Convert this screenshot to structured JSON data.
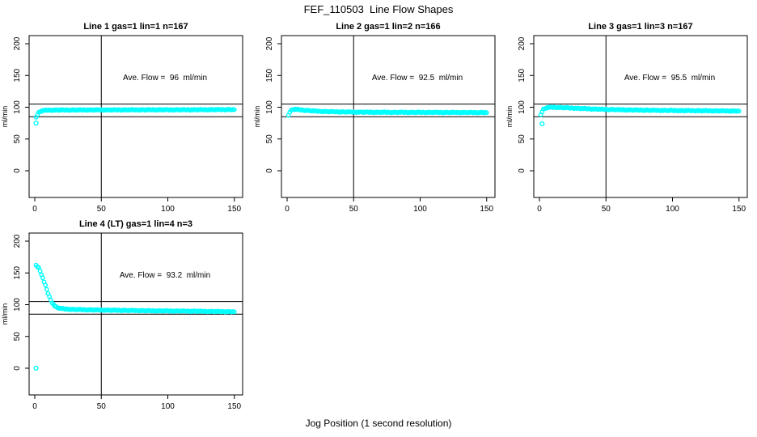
{
  "figure": {
    "title": "FEF_110503  Line Flow Shapes",
    "xlabel": "Jog Position (1 second resolution)",
    "background_color": "#ffffff",
    "point_color": "#00ffff",
    "line_color": "#000000"
  },
  "chart_data": [
    {
      "type": "scatter",
      "title": "Line 1 gas=1 lin=1 n=167",
      "annotation": "Ave. Flow =  96  ml/min",
      "line": 1,
      "gas": 1,
      "lin": 1,
      "n": 167,
      "ave_flow_ml_min": 96,
      "ylabel": "ml/min",
      "xlim": [
        0,
        150
      ],
      "ylim": [
        0,
        200
      ],
      "xticks": [
        0,
        50,
        100,
        150
      ],
      "yticks": [
        0,
        50,
        100,
        150,
        200
      ],
      "hlines": [
        105,
        85
      ],
      "vline": 50,
      "grid": false,
      "points": [
        [
          1,
          84
        ],
        [
          2,
          88.5
        ],
        [
          3,
          91.5
        ],
        [
          4,
          93
        ],
        [
          5,
          94.2
        ],
        [
          6,
          94.8
        ],
        [
          8,
          95.2
        ],
        [
          10,
          95.4
        ],
        [
          15,
          95.6
        ],
        [
          20,
          95.6
        ],
        [
          30,
          95.7
        ],
        [
          40,
          95.8
        ],
        [
          50,
          95.8
        ],
        [
          60,
          95.8
        ],
        [
          70,
          95.9
        ],
        [
          80,
          95.9
        ],
        [
          90,
          96
        ],
        [
          100,
          96
        ],
        [
          110,
          96
        ],
        [
          120,
          96.1
        ],
        [
          130,
          96.2
        ],
        [
          140,
          96.3
        ],
        [
          150,
          96.4
        ]
      ],
      "outliers": [
        [
          1,
          75
        ]
      ]
    },
    {
      "type": "scatter",
      "title": "Line 2 gas=1 lin=2 n=166",
      "annotation": "Ave. Flow =  92.5  ml/min",
      "line": 2,
      "gas": 1,
      "lin": 2,
      "n": 166,
      "ave_flow_ml_min": 92.5,
      "ylabel": "ml/min",
      "xlim": [
        0,
        150
      ],
      "ylim": [
        0,
        200
      ],
      "xticks": [
        0,
        50,
        100,
        150
      ],
      "yticks": [
        0,
        50,
        100,
        150,
        200
      ],
      "hlines": [
        105,
        85
      ],
      "vline": 50,
      "grid": false,
      "points": [
        [
          1,
          87
        ],
        [
          2,
          92.5
        ],
        [
          3,
          95
        ],
        [
          4,
          96.3
        ],
        [
          5,
          96.8
        ],
        [
          6,
          96.8
        ],
        [
          8,
          96.4
        ],
        [
          10,
          96
        ],
        [
          12,
          95.5
        ],
        [
          15,
          95
        ],
        [
          20,
          94.2
        ],
        [
          25,
          93.6
        ],
        [
          30,
          93.2
        ],
        [
          40,
          92.7
        ],
        [
          50,
          92.4
        ],
        [
          60,
          92.2
        ],
        [
          70,
          92.1
        ],
        [
          80,
          92
        ],
        [
          90,
          92
        ],
        [
          100,
          91.9
        ],
        [
          110,
          91.9
        ],
        [
          120,
          91.8
        ],
        [
          130,
          91.8
        ],
        [
          140,
          91.7
        ],
        [
          150,
          91.7
        ]
      ],
      "outliers": []
    },
    {
      "type": "scatter",
      "title": "Line 3 gas=1 lin=3 n=167",
      "annotation": "Ave. Flow =  95.5  ml/min",
      "line": 3,
      "gas": 1,
      "lin": 3,
      "n": 167,
      "ave_flow_ml_min": 95.5,
      "ylabel": "ml/min",
      "xlim": [
        0,
        150
      ],
      "ylim": [
        0,
        200
      ],
      "xticks": [
        0,
        50,
        100,
        150
      ],
      "yticks": [
        0,
        50,
        100,
        150,
        200
      ],
      "hlines": [
        105,
        85
      ],
      "vline": 50,
      "grid": false,
      "points": [
        [
          1,
          88
        ],
        [
          2,
          93
        ],
        [
          3,
          96.5
        ],
        [
          4,
          98
        ],
        [
          5,
          99
        ],
        [
          6,
          99.5
        ],
        [
          8,
          99.8
        ],
        [
          10,
          100
        ],
        [
          12,
          99.9
        ],
        [
          15,
          99.6
        ],
        [
          20,
          99.2
        ],
        [
          25,
          98.7
        ],
        [
          30,
          98.2
        ],
        [
          40,
          97.3
        ],
        [
          50,
          96.6
        ],
        [
          60,
          96.1
        ],
        [
          70,
          95.7
        ],
        [
          80,
          95.4
        ],
        [
          90,
          95.1
        ],
        [
          100,
          94.9
        ],
        [
          110,
          94.7
        ],
        [
          120,
          94.6
        ],
        [
          130,
          94.4
        ],
        [
          140,
          94.2
        ],
        [
          150,
          94.1
        ]
      ],
      "outliers": [
        [
          2,
          74
        ]
      ]
    },
    {
      "type": "scatter",
      "title": "Line 4 (LT) gas=1 lin=4 n=3",
      "annotation": "Ave. Flow =  93.2  ml/min",
      "line": 4,
      "gas": 1,
      "lin": 4,
      "n": 3,
      "ave_flow_ml_min": 93.2,
      "ylabel": "ml/min",
      "xlim": [
        0,
        150
      ],
      "ylim": [
        0,
        200
      ],
      "xticks": [
        0,
        50,
        100,
        150
      ],
      "yticks": [
        0,
        50,
        100,
        150,
        200
      ],
      "hlines": [
        105,
        85
      ],
      "vline": 50,
      "grid": false,
      "points": [
        [
          1,
          162
        ],
        [
          2,
          160
        ],
        [
          3,
          157.5
        ],
        [
          4,
          153
        ],
        [
          5,
          148
        ],
        [
          6,
          142
        ],
        [
          7,
          136
        ],
        [
          8,
          130
        ],
        [
          9,
          124
        ],
        [
          10,
          118
        ],
        [
          11,
          112.5
        ],
        [
          12,
          107.5
        ],
        [
          13,
          103.5
        ],
        [
          14,
          100.5
        ],
        [
          15,
          98
        ],
        [
          16,
          96.5
        ],
        [
          17,
          95.5
        ],
        [
          18,
          94.8
        ],
        [
          20,
          94
        ],
        [
          22,
          93.5
        ],
        [
          25,
          93
        ],
        [
          30,
          92.5
        ],
        [
          35,
          92.2
        ],
        [
          40,
          92
        ],
        [
          50,
          91.6
        ],
        [
          60,
          91.3
        ],
        [
          70,
          91
        ],
        [
          80,
          90.7
        ],
        [
          90,
          90.4
        ],
        [
          100,
          90.2
        ],
        [
          110,
          90
        ],
        [
          120,
          89.8
        ],
        [
          130,
          89.5
        ],
        [
          140,
          89.2
        ],
        [
          150,
          89
        ]
      ],
      "outliers": [
        [
          1,
          0
        ]
      ]
    }
  ]
}
